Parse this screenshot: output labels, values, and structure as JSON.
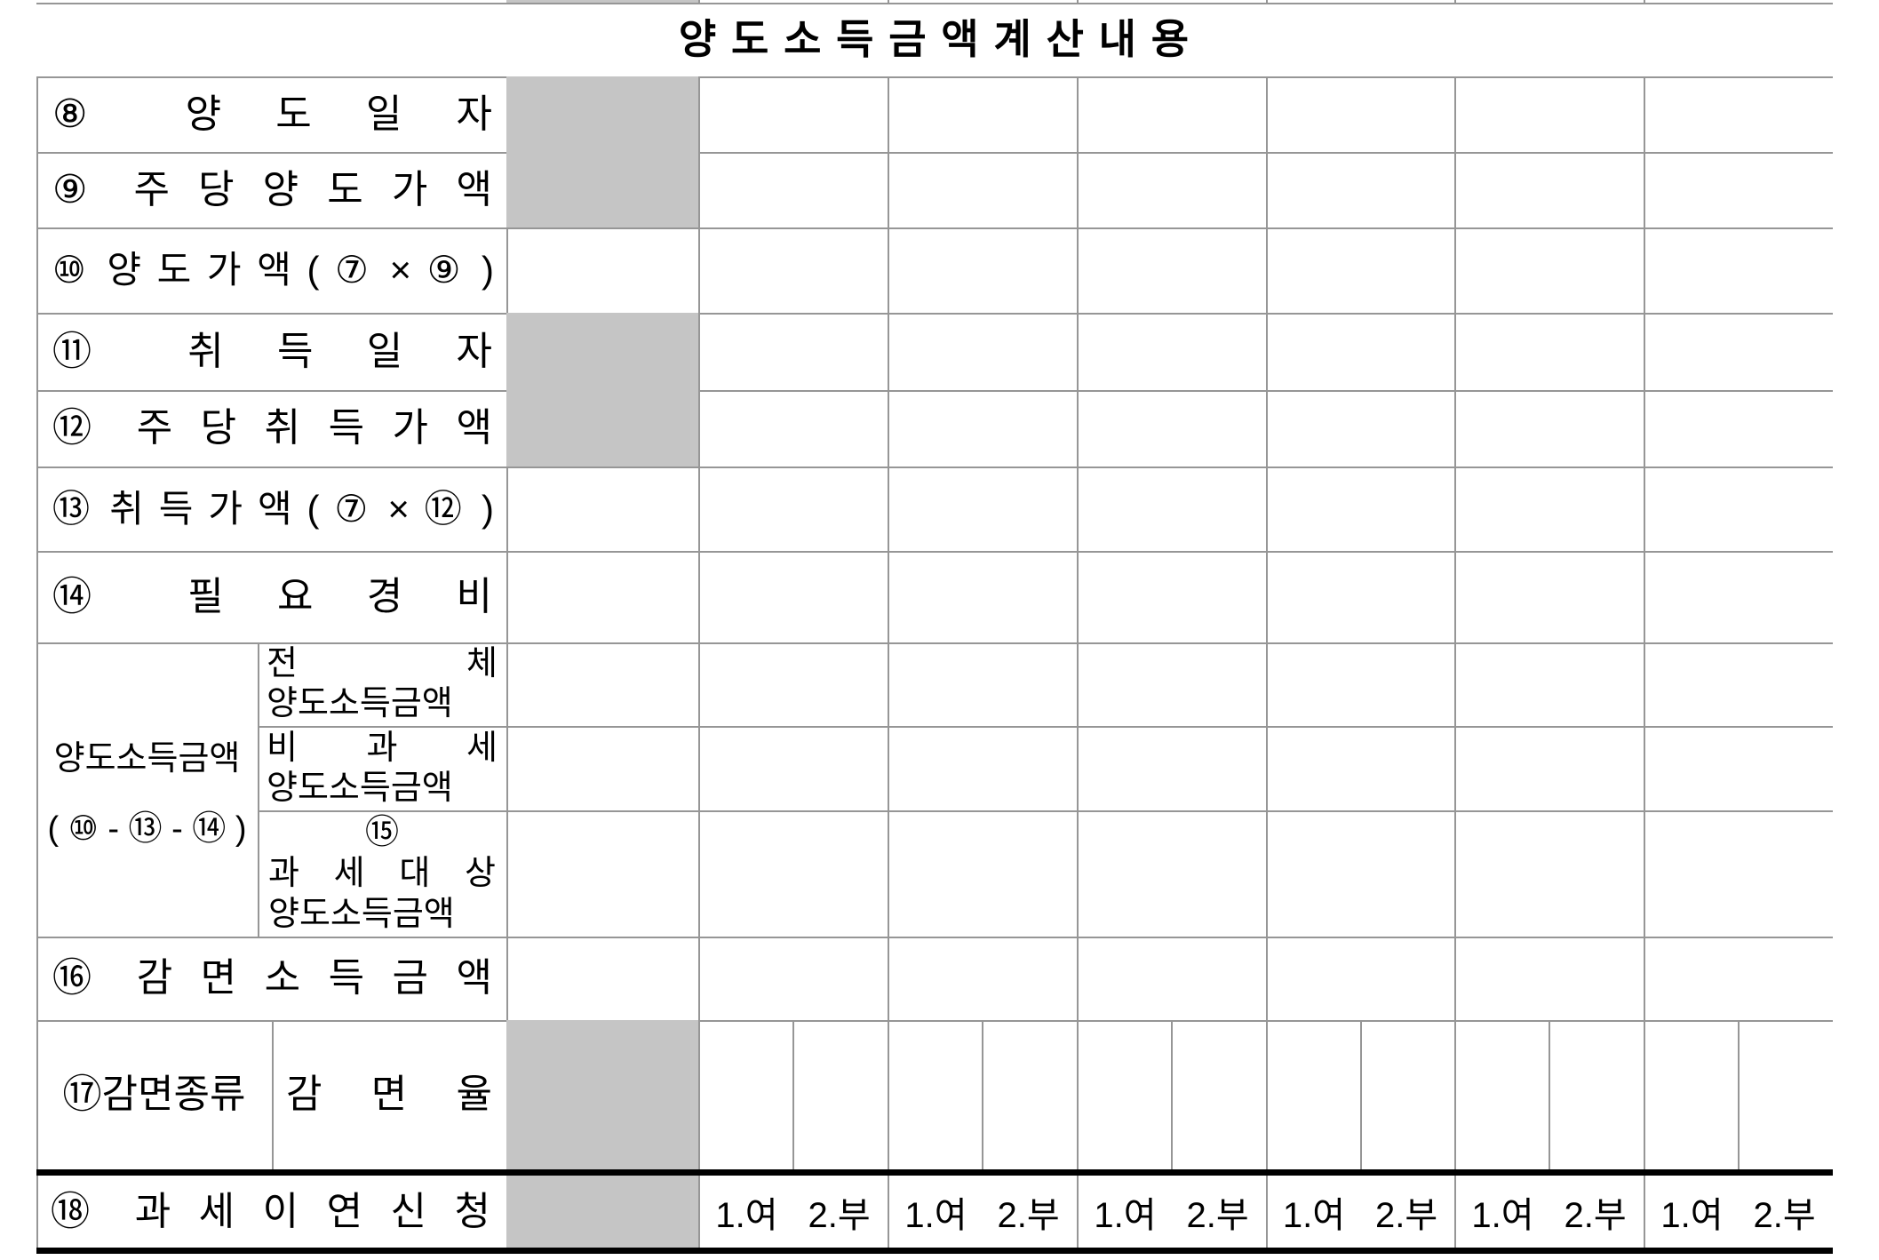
{
  "title": "양 도 소 득 금 액  계 산 내 용",
  "rows": {
    "r8_label": "⑧ 양 도 일 자",
    "r9_label": "⑨ 주 당 양 도 가 액",
    "r10_label": "⑩ 양 도 가 액 ( ⑦ × ⑨ )",
    "r11_label": "⑪ 취 득 일 자",
    "r12_label": "⑫ 주 당 취 득 가 액",
    "r13_label": "⑬ 취 득 가 액 ( ⑦ × ⑫ )",
    "r14_label": "⑭ 필 요 경 비",
    "group_label_line1": "양도소득금액",
    "group_label_line2": "( ⑩ - ⑬ - ⑭ )",
    "sub_total_line1": "전 체",
    "sub_total_line2": "양도소득금액",
    "sub_nontax_line1": "비 과 세",
    "sub_nontax_line2": "양도소득금액",
    "sub_taxable_line1": "⑮",
    "sub_taxable_line2": "과 세 대 상",
    "sub_taxable_line3": "양도소득금액",
    "r16_label": "⑯ 감 면 소 득 금 액",
    "r17_label_type": "⑰감면종류",
    "r17_label_rate": "감 면 율",
    "r18_label": "⑱ 과 세 이 연 신 청",
    "r18_option_yes": "1.여",
    "r18_option_no": "2.부"
  },
  "colors": {
    "grid_line": "#969696",
    "heavy_line": "#000000",
    "shaded_cell": "#c5c5c5",
    "text": "#000000",
    "background": "#ffffff"
  }
}
